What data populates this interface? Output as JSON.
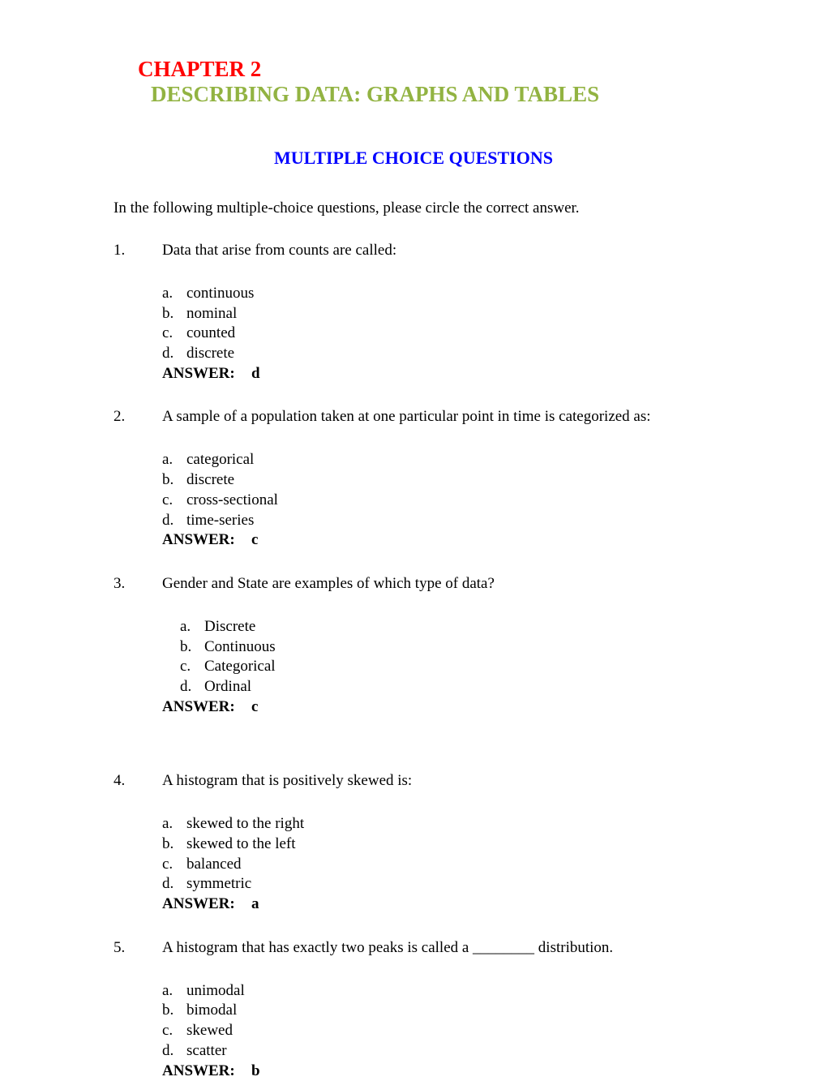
{
  "chapter": {
    "title": "CHAPTER 2",
    "subtitle": "DESCRIBING DATA: GRAPHS AND TABLES"
  },
  "section_title": "MULTIPLE CHOICE QUESTIONS",
  "instructions": "In the following multiple-choice questions, please circle the correct answer.",
  "answer_label": "ANSWER:",
  "questions": [
    {
      "num": "1.",
      "text": "Data that arise from counts are called:",
      "indent_options": false,
      "options": [
        {
          "letter": "a.",
          "text": "continuous"
        },
        {
          "letter": "b.",
          "text": "nominal"
        },
        {
          "letter": "c.",
          "text": "counted"
        },
        {
          "letter": "d.",
          "text": "discrete"
        }
      ],
      "answer": "d"
    },
    {
      "num": "2.",
      "text": "A sample of a population taken at one particular point in time is categorized as:",
      "indent_options": false,
      "options": [
        {
          "letter": "a.",
          "text": "categorical"
        },
        {
          "letter": "b.",
          "text": "discrete"
        },
        {
          "letter": "c.",
          "text": "cross-sectional"
        },
        {
          "letter": "d.",
          "text": "time-series"
        }
      ],
      "answer": "c"
    },
    {
      "num": "3.",
      "text": "Gender and State are examples of which type of data?",
      "indent_options": true,
      "options": [
        {
          "letter": "a.",
          "text": "Discrete"
        },
        {
          "letter": "b.",
          "text": "Continuous"
        },
        {
          "letter": "c.",
          "text": "Categorical"
        },
        {
          "letter": "d.",
          "text": "Ordinal"
        }
      ],
      "answer": "c"
    },
    {
      "num": "4.",
      "text": "A histogram that is positively skewed is:",
      "indent_options": false,
      "extra_gap": true,
      "options": [
        {
          "letter": "a.",
          "text": "skewed to the right"
        },
        {
          "letter": "b.",
          "text": "skewed to the left"
        },
        {
          "letter": "c.",
          "text": "balanced"
        },
        {
          "letter": "d.",
          "text": "symmetric"
        }
      ],
      "answer": "a"
    },
    {
      "num": "5.",
      "text": "A histogram that has exactly two peaks is called a ________ distribution.",
      "indent_options": false,
      "options": [
        {
          "letter": "a.",
          "text": "unimodal"
        },
        {
          "letter": "b.",
          "text": "bimodal"
        },
        {
          "letter": "c.",
          "text": "skewed"
        },
        {
          "letter": "d.",
          "text": "scatter"
        }
      ],
      "answer": "b"
    }
  ],
  "colors": {
    "chapter_title": "#ff0000",
    "chapter_subtitle": "#92b342",
    "section_title": "#0000ff",
    "text": "#000000",
    "background": "#ffffff"
  },
  "typography": {
    "font_family": "Times New Roman",
    "title_fontsize": 27,
    "section_fontsize": 22,
    "body_fontsize": 19
  }
}
